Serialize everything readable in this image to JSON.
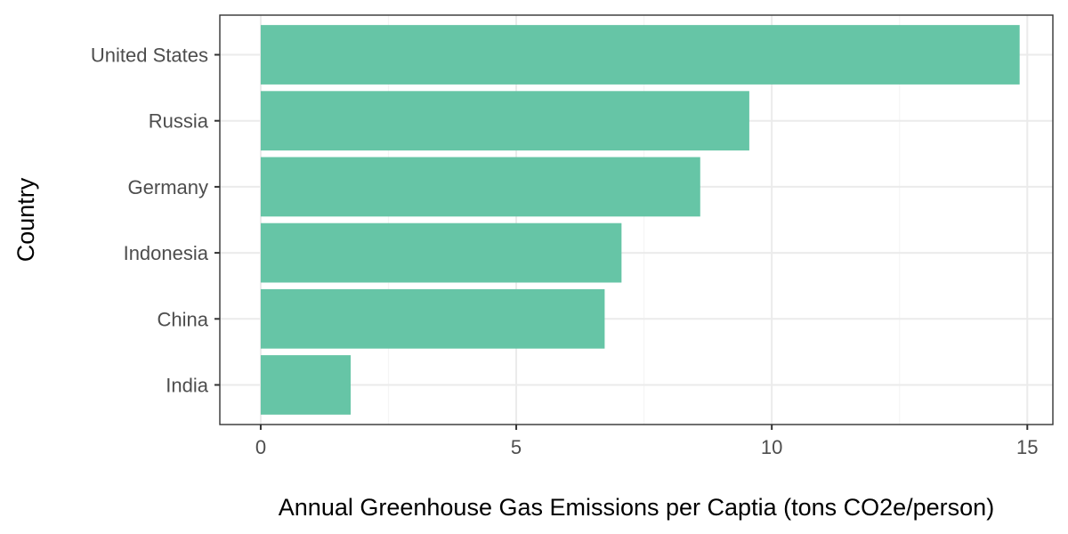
{
  "chart_data": {
    "type": "bar",
    "orientation": "horizontal",
    "categories": [
      "United States",
      "Russia",
      "Germany",
      "Indonesia",
      "China",
      "India"
    ],
    "values": [
      14.85,
      9.56,
      8.6,
      7.06,
      6.73,
      1.76
    ],
    "xlabel": "Annual Greenhouse Gas Emissions per Captia (tons CO2e/person)",
    "ylabel": "Country",
    "xlim": [
      -0.8,
      15.5
    ],
    "x_ticks": [
      0,
      5,
      10,
      15
    ],
    "x_tick_labels": [
      "0",
      "5",
      "10",
      "15"
    ],
    "grid": true,
    "legend": "none",
    "colors": {
      "bar": "#66c5a6",
      "panel_border": "#333333",
      "grid_major": "#ebebeb",
      "grid_minor": "#f5f5f5",
      "tick_text": "#4d4d4d",
      "title_text": "#000000"
    }
  }
}
